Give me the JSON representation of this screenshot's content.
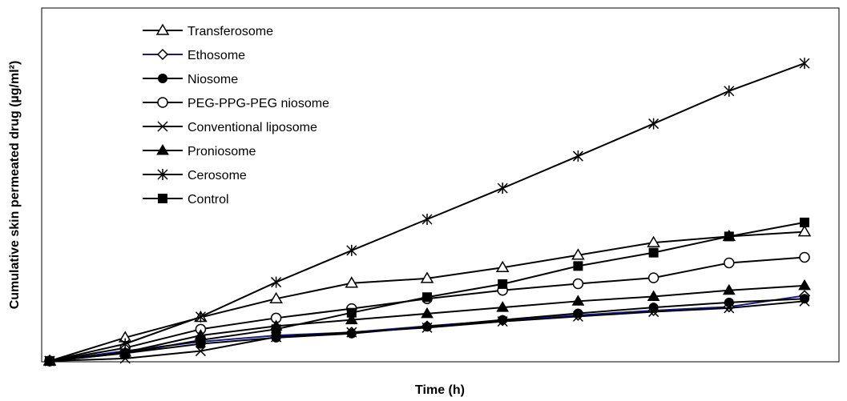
{
  "chart_data": {
    "type": "line",
    "title": "",
    "xlabel": "Time (h)",
    "ylabel": "Cumulative skin permeated drug (µg/ml²)",
    "xlim": [
      0,
      10
    ],
    "ylim": [
      0,
      100
    ],
    "grid": false,
    "legend_position": "top-left",
    "x": [
      0,
      1,
      2,
      3,
      4,
      5,
      6,
      7,
      8,
      9,
      10
    ],
    "series": [
      {
        "name": "Transferosome",
        "marker": "triangle-open",
        "color": "#000000",
        "values": [
          0,
          7.5,
          14,
          20,
          25,
          26.5,
          30,
          34,
          38,
          40,
          41.5
        ]
      },
      {
        "name": "Ethosome",
        "marker": "diamond-open",
        "color": "#1a1a80",
        "values": [
          0,
          3.2,
          6.2,
          8.2,
          9.2,
          11.2,
          13,
          14.7,
          16.2,
          17.4,
          21
        ]
      },
      {
        "name": "Niosome",
        "marker": "circle-filled",
        "color": "#000000",
        "values": [
          0,
          2.5,
          5.5,
          7.5,
          8.8,
          11,
          13.2,
          15.3,
          17.2,
          18.8,
          20
        ]
      },
      {
        "name": "PEG-PPG-PEG niosome",
        "marker": "circle-open",
        "color": "#000000",
        "values": [
          0,
          4.2,
          10.2,
          13.8,
          16.8,
          20,
          22.7,
          24.8,
          26.7,
          31.5,
          33.3
        ]
      },
      {
        "name": "Conventional liposome",
        "marker": "cross",
        "color": "#000000",
        "values": [
          0,
          0.8,
          3.2,
          7.7,
          9.2,
          10.7,
          12.7,
          14.3,
          15.8,
          17,
          19.2
        ]
      },
      {
        "name": "Proniosome",
        "marker": "triangle-filled",
        "color": "#000000",
        "values": [
          0,
          2.8,
          8.2,
          11.2,
          13.2,
          15.2,
          17.2,
          19.2,
          20.7,
          22.7,
          24.2
        ]
      },
      {
        "name": "Cerosome",
        "marker": "asterisk",
        "color": "#000000",
        "values": [
          0,
          5.5,
          14.2,
          25.3,
          35.5,
          45.5,
          55.5,
          65.8,
          76.2,
          86.7,
          95.6
        ]
      },
      {
        "name": "Control",
        "marker": "square-filled",
        "color": "#000000",
        "values": [
          0,
          2.5,
          6.7,
          10.2,
          15.5,
          20.5,
          24.7,
          30.5,
          34.8,
          40,
          44.5
        ]
      }
    ]
  }
}
